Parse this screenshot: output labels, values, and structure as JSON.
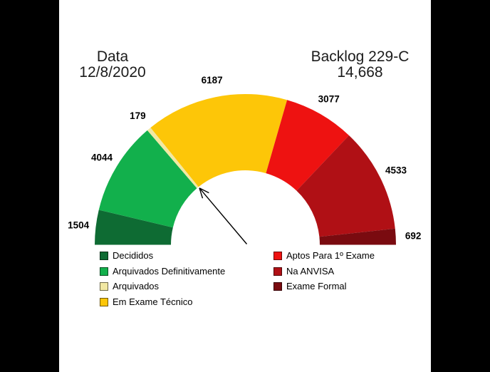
{
  "header": {
    "date_label": "Data",
    "date_value": "12/8/2020",
    "backlog_label": "Backlog 229-C",
    "backlog_value": "14,668"
  },
  "chart_data": {
    "type": "pie",
    "variant": "half-donut-gauge",
    "title": "Backlog 229-C 14,668",
    "subtitle": "Data 12/8/2020",
    "categories": [
      "Decididos",
      "Arquivados Definitivamente",
      "Arquivados",
      "Em Exame Técnico",
      "Aptos Para 1º Exame",
      "Na ANVISA",
      "Exame Formal"
    ],
    "values": [
      1504,
      4044,
      179,
      6187,
      3077,
      4533,
      692
    ],
    "colors": [
      "#0E6B33",
      "#12B04C",
      "#F1E8A3",
      "#FDC608",
      "#EE1211",
      "#B01015",
      "#7A0B10"
    ],
    "start_angle_deg": 180,
    "end_angle_deg": 0,
    "legend_position": "bottom-two-columns",
    "annotations": [
      {
        "type": "arrow",
        "text": "",
        "points_at": "inner edge boundary between Arquivados and Em Exame Técnico"
      }
    ]
  },
  "legend": {
    "left_items": [
      {
        "label": "Decididos",
        "color": "#0E6B33"
      },
      {
        "label": "Arquivados Definitivamente",
        "color": "#12B04C"
      },
      {
        "label": "Arquivados",
        "color": "#F1E8A3"
      },
      {
        "label": "Em Exame Técnico",
        "color": "#FDC608"
      }
    ],
    "right_items": [
      {
        "label": "Aptos Para 1º Exame",
        "color": "#EE1211"
      },
      {
        "label": "Na ANVISA",
        "color": "#B01015"
      },
      {
        "label": "Exame Formal",
        "color": "#7A0B10"
      }
    ]
  }
}
